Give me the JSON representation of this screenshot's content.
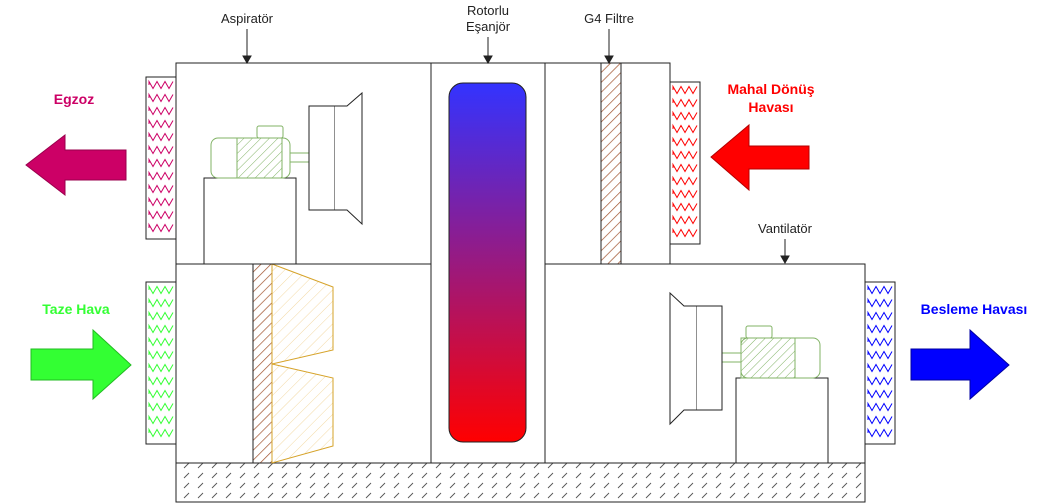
{
  "labels": {
    "aspirator": "Aspiratör",
    "exchanger_line1": "Rotorlu",
    "exchanger_line2": "Eşanjör",
    "g4_filter": "G4 Filtre",
    "fan": "Vantilatör",
    "exhaust": "Egzoz",
    "return_line1": "Mahal Dönüş",
    "return_line2": "Havası",
    "fresh_air": "Taze Hava",
    "supply_air": "Besleme Havası"
  },
  "colors": {
    "exhaust": "#cc0066",
    "return": "#ff0000",
    "fresh": "#33ff33",
    "supply": "#0000ff",
    "motor": "#82b366",
    "filter_hatch": "#a0522d",
    "bag_filter": "#d6a32a",
    "rotor_top": "#3333ff",
    "rotor_bottom": "#ff0000"
  }
}
